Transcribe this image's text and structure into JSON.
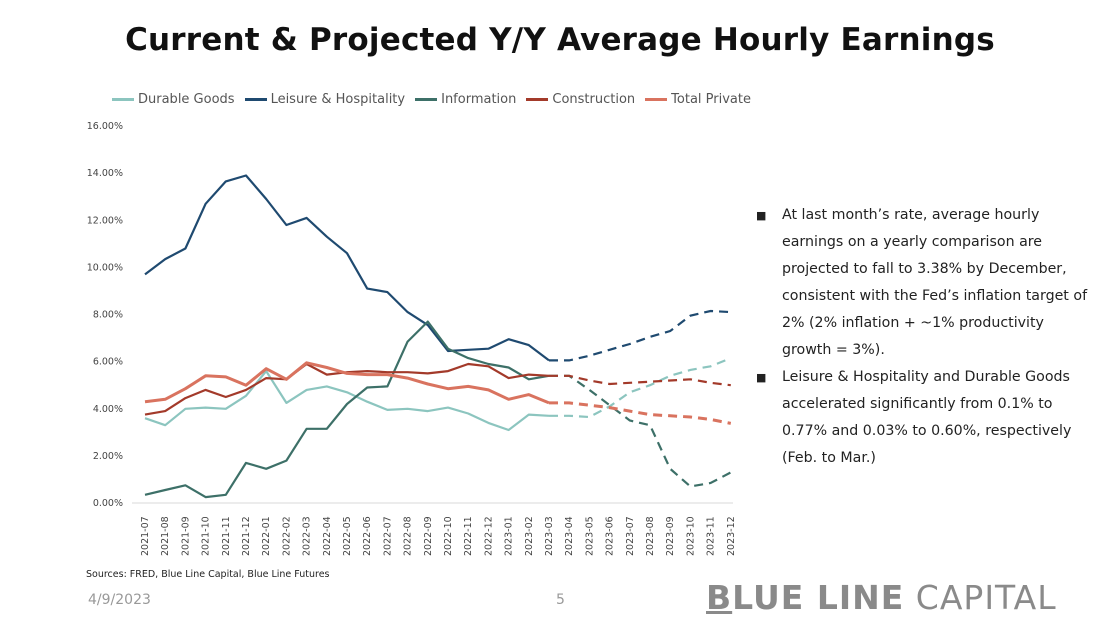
{
  "title": "Current & Projected Y/Y Average Hourly Earnings",
  "bullets": [
    "At last month’s rate, average hourly earnings on a yearly comparison are projected to fall to 3.38% by December, consistent with the Fed’s inflation target of 2% (2% inflation + ~1% productivity growth = 3%).",
    "Leisure & Hospitality and Durable Goods accelerated significantly from 0.1% to 0.77% and 0.03% to 0.60%, respectively (Feb. to Mar.)"
  ],
  "footer": {
    "sources": "Sources: FRED, Blue Line Capital, Blue Line Futures",
    "date": "4/9/2023",
    "page": "5",
    "brand_b": "B",
    "brand_bold": "LUE LINE",
    "brand_light": " CAPITAL"
  },
  "colors": {
    "durable": "#8cc5bf",
    "leisure": "#1f4a70",
    "information": "#3d7068",
    "construction": "#a33a2a",
    "total": "#d9735f"
  },
  "chart_data": {
    "type": "line",
    "title": "Current & Projected Y/Y Average Hourly Earnings",
    "xlabel": "",
    "ylabel": "",
    "ylim": [
      0,
      16
    ],
    "yticks": [
      "0.00%",
      "2.00%",
      "4.00%",
      "6.00%",
      "8.00%",
      "10.00%",
      "12.00%",
      "14.00%",
      "16.00%"
    ],
    "grid": false,
    "legend_position": "top",
    "categories": [
      "2021-07",
      "2021-08",
      "2021-09",
      "2021-10",
      "2021-11",
      "2021-12",
      "2022-01",
      "2022-02",
      "2022-03",
      "2022-04",
      "2022-05",
      "2022-06",
      "2022-07",
      "2022-08",
      "2022-09",
      "2022-10",
      "2022-11",
      "2022-12",
      "2023-01",
      "2023-02",
      "2023-03",
      "2023-04",
      "2023-05",
      "2023-06",
      "2023-07",
      "2023-08",
      "2023-09",
      "2023-10",
      "2023-11",
      "2023-12"
    ],
    "actual_through": "2023-03",
    "projected_from": "2023-03",
    "series": [
      {
        "name": "Durable Goods",
        "color_key": "durable",
        "values": [
          3.6,
          3.3,
          4.0,
          4.05,
          4.0,
          4.55,
          5.6,
          4.25,
          4.8,
          4.95,
          4.7,
          4.3,
          3.95,
          4.0,
          3.9,
          4.05,
          3.8,
          3.4,
          3.1,
          3.75,
          3.7,
          3.7,
          3.65,
          4.1,
          4.7,
          5.0,
          5.4,
          5.65,
          5.8,
          6.15
        ]
      },
      {
        "name": "Leisure & Hospitality",
        "color_key": "leisure",
        "values": [
          9.7,
          10.35,
          10.8,
          12.7,
          13.65,
          13.9,
          12.9,
          11.8,
          12.1,
          11.3,
          10.6,
          9.1,
          8.95,
          8.1,
          7.55,
          6.45,
          6.5,
          6.55,
          6.95,
          6.7,
          6.05,
          6.05,
          6.25,
          6.5,
          6.75,
          7.05,
          7.3,
          7.95,
          8.15,
          8.1
        ]
      },
      {
        "name": "Information",
        "color_key": "information",
        "values": [
          0.35,
          0.55,
          0.75,
          0.25,
          0.35,
          1.7,
          1.45,
          1.8,
          3.15,
          3.15,
          4.2,
          4.9,
          4.95,
          6.85,
          7.7,
          6.55,
          6.15,
          5.9,
          5.75,
          5.25,
          5.4,
          5.4,
          4.8,
          4.15,
          3.5,
          3.3,
          1.45,
          0.7,
          0.85,
          1.3
        ]
      },
      {
        "name": "Construction",
        "color_key": "construction",
        "values": [
          3.75,
          3.9,
          4.45,
          4.8,
          4.5,
          4.8,
          5.3,
          5.25,
          5.9,
          5.45,
          5.55,
          5.6,
          5.55,
          5.55,
          5.5,
          5.6,
          5.9,
          5.8,
          5.3,
          5.45,
          5.4,
          5.4,
          5.2,
          5.05,
          5.1,
          5.15,
          5.2,
          5.25,
          5.1,
          5.0
        ]
      },
      {
        "name": "Total Private",
        "color_key": "total",
        "values": [
          4.3,
          4.4,
          4.85,
          5.4,
          5.35,
          5.0,
          5.7,
          5.25,
          5.95,
          5.75,
          5.5,
          5.45,
          5.45,
          5.3,
          5.05,
          4.85,
          4.95,
          4.8,
          4.4,
          4.6,
          4.25,
          4.25,
          4.15,
          4.05,
          3.9,
          3.75,
          3.7,
          3.65,
          3.55,
          3.38
        ]
      }
    ]
  }
}
